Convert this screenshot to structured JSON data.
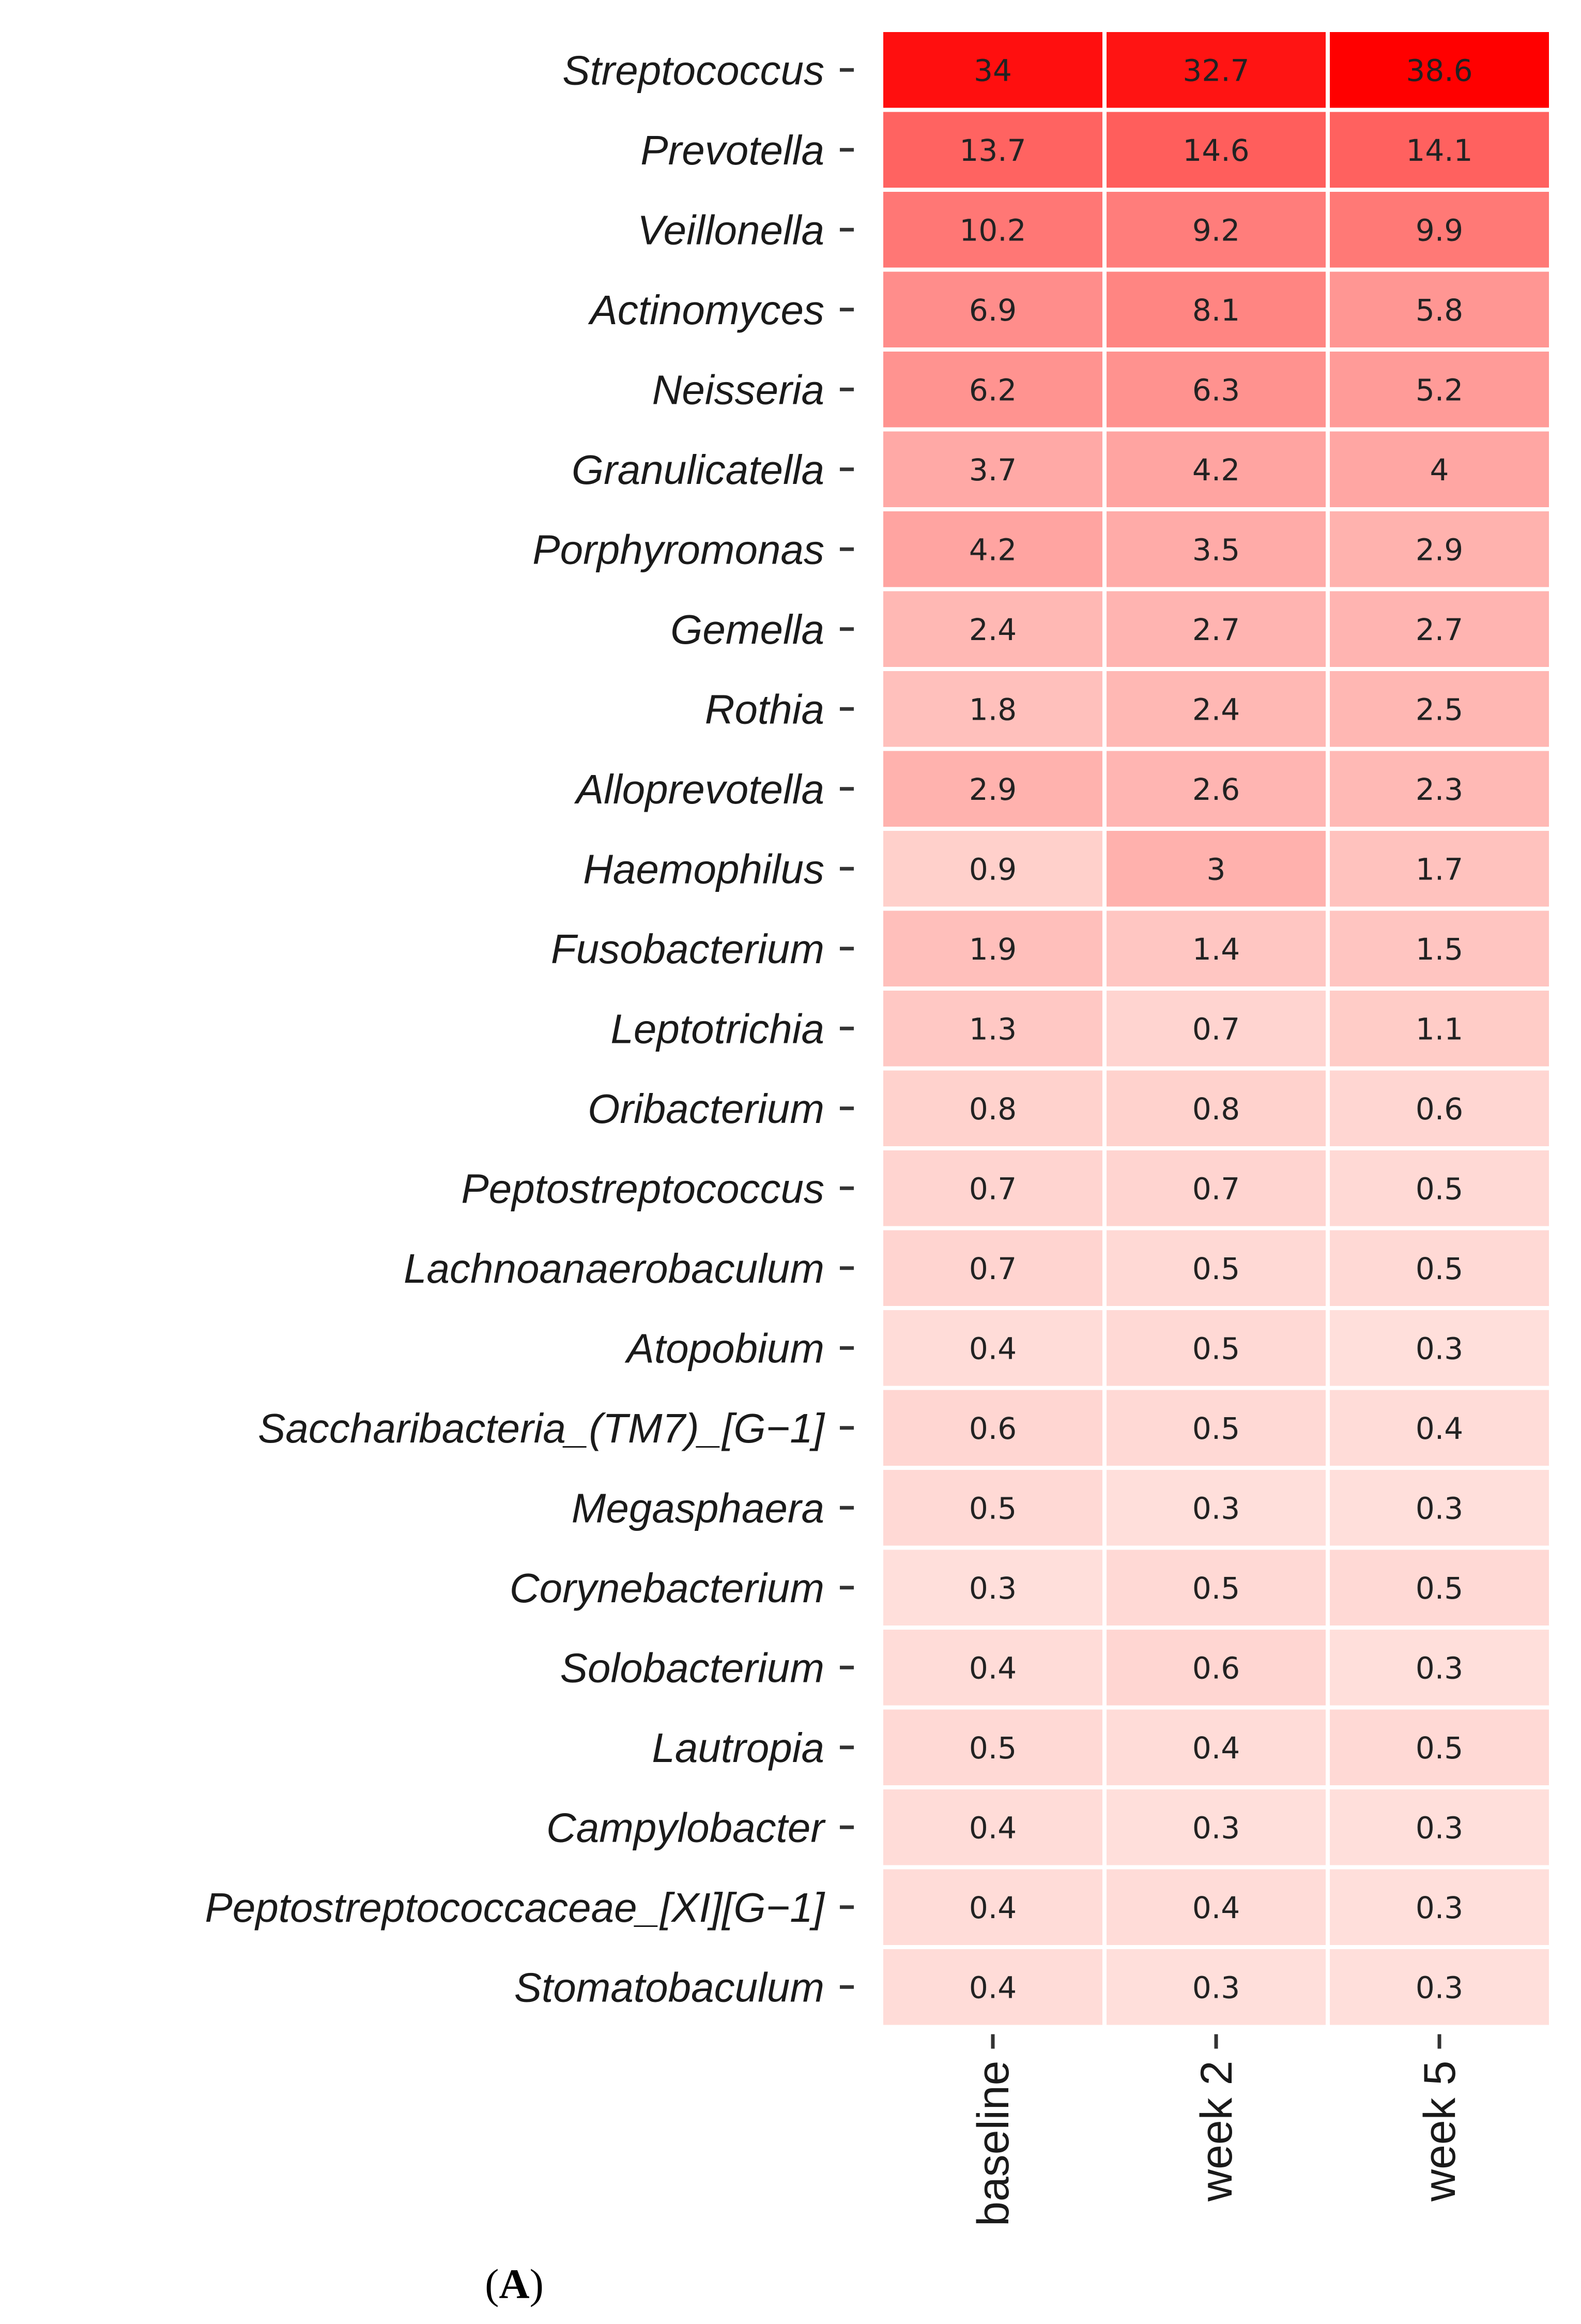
{
  "chart_data": {
    "type": "heatmap",
    "title": "",
    "xlabel": "",
    "ylabel": "",
    "panel_label_prefix": "(",
    "panel_label_letter": "A",
    "panel_label_suffix": ")",
    "columns": [
      "baseline",
      "week 2",
      "week 5"
    ],
    "rows": [
      "Streptococcus",
      "Prevotella",
      "Veillonella",
      "Actinomyces",
      "Neisseria",
      "Granulicatella",
      "Porphyromonas",
      "Gemella",
      "Rothia",
      "Alloprevotella",
      "Haemophilus",
      "Fusobacterium",
      "Leptotrichia",
      "Oribacterium",
      "Peptostreptococcus",
      "Lachnoanaerobaculum",
      "Atopobium",
      "Saccharibacteria_(TM7)_[G−1]",
      "Megasphaera",
      "Corynebacterium",
      "Solobacterium",
      "Lautropia",
      "Campylobacter",
      "Peptostreptococcaceae_[XI][G−1]",
      "Stomatobaculum"
    ],
    "values": [
      [
        "34",
        "32.7",
        "38.6"
      ],
      [
        "13.7",
        "14.6",
        "14.1"
      ],
      [
        "10.2",
        "9.2",
        "9.9"
      ],
      [
        "6.9",
        "8.1",
        "5.8"
      ],
      [
        "6.2",
        "6.3",
        "5.2"
      ],
      [
        "3.7",
        "4.2",
        "4"
      ],
      [
        "4.2",
        "3.5",
        "2.9"
      ],
      [
        "2.4",
        "2.7",
        "2.7"
      ],
      [
        "1.8",
        "2.4",
        "2.5"
      ],
      [
        "2.9",
        "2.6",
        "2.3"
      ],
      [
        "0.9",
        "3",
        "1.7"
      ],
      [
        "1.9",
        "1.4",
        "1.5"
      ],
      [
        "1.3",
        "0.7",
        "1.1"
      ],
      [
        "0.8",
        "0.8",
        "0.6"
      ],
      [
        "0.7",
        "0.7",
        "0.5"
      ],
      [
        "0.7",
        "0.5",
        "0.5"
      ],
      [
        "0.4",
        "0.5",
        "0.3"
      ],
      [
        "0.6",
        "0.5",
        "0.4"
      ],
      [
        "0.5",
        "0.3",
        "0.3"
      ],
      [
        "0.3",
        "0.5",
        "0.5"
      ],
      [
        "0.4",
        "0.6",
        "0.3"
      ],
      [
        "0.5",
        "0.4",
        "0.5"
      ],
      [
        "0.4",
        "0.3",
        "0.3"
      ],
      [
        "0.4",
        "0.4",
        "0.3"
      ],
      [
        "0.4",
        "0.3",
        "0.3"
      ]
    ],
    "color_scale": {
      "low_color": "#fff5f0",
      "high_color": "#ff0000",
      "domain": [
        0,
        38.6
      ]
    }
  }
}
